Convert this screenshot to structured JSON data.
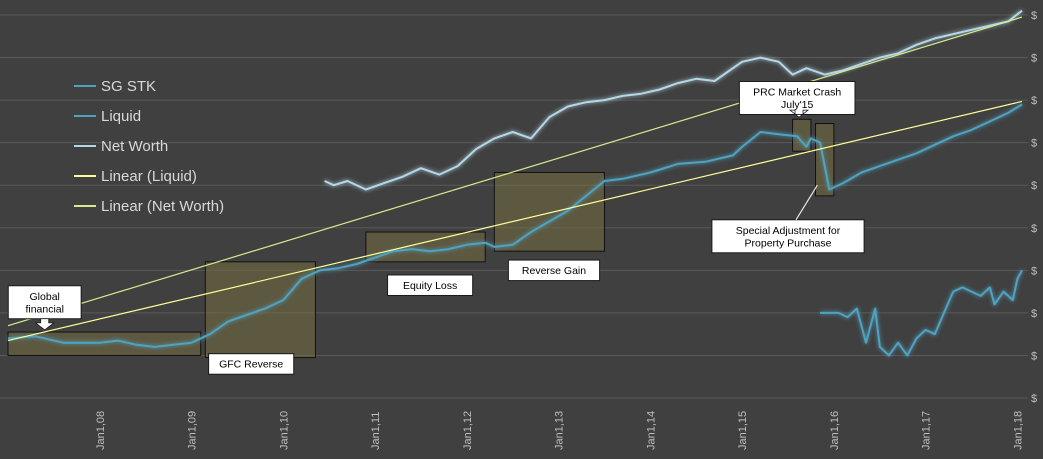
{
  "chart_data": {
    "type": "line",
    "title": "",
    "xlabel": "",
    "ylabel": "",
    "x_range": [
      2007.0,
      2018.05
    ],
    "y_range": [
      0,
      9
    ],
    "y_tick_label": "$",
    "x_tick_labels": [
      "Jan1,08",
      "Jan1,09",
      "Jan1,10",
      "Jan1,11",
      "Jan1,12",
      "Jan1,13",
      "Jan1,14",
      "Jan1,15",
      "Jan1,16",
      "Jan1,17",
      "Jan1,18"
    ],
    "grid": true,
    "legend_position": "top-left",
    "series": [
      {
        "name": "SG STK",
        "color": "#4fa3c0",
        "points": [
          [
            2015.85,
            2.0
          ],
          [
            2016.05,
            2.0
          ],
          [
            2016.15,
            1.9
          ],
          [
            2016.25,
            2.1
          ],
          [
            2016.35,
            1.3
          ],
          [
            2016.45,
            2.1
          ],
          [
            2016.5,
            1.2
          ],
          [
            2016.6,
            1.0
          ],
          [
            2016.7,
            1.3
          ],
          [
            2016.8,
            1.0
          ],
          [
            2016.9,
            1.4
          ],
          [
            2017.0,
            1.6
          ],
          [
            2017.1,
            1.5
          ],
          [
            2017.2,
            2.0
          ],
          [
            2017.3,
            2.5
          ],
          [
            2017.4,
            2.6
          ],
          [
            2017.5,
            2.5
          ],
          [
            2017.6,
            2.4
          ],
          [
            2017.7,
            2.6
          ],
          [
            2017.75,
            2.2
          ],
          [
            2017.85,
            2.5
          ],
          [
            2017.95,
            2.3
          ],
          [
            2018.0,
            2.8
          ],
          [
            2018.05,
            3.0
          ]
        ]
      },
      {
        "name": "Liquid",
        "color": "#4fa3c0",
        "points": [
          [
            2007.0,
            1.4
          ],
          [
            2007.3,
            1.45
          ],
          [
            2007.6,
            1.3
          ],
          [
            2008.0,
            1.3
          ],
          [
            2008.2,
            1.35
          ],
          [
            2008.4,
            1.25
          ],
          [
            2008.6,
            1.2
          ],
          [
            2008.8,
            1.25
          ],
          [
            2009.0,
            1.3
          ],
          [
            2009.2,
            1.5
          ],
          [
            2009.4,
            1.8
          ],
          [
            2009.6,
            1.95
          ],
          [
            2009.8,
            2.1
          ],
          [
            2010.0,
            2.3
          ],
          [
            2010.2,
            2.8
          ],
          [
            2010.4,
            3.0
          ],
          [
            2010.6,
            3.05
          ],
          [
            2010.8,
            3.15
          ],
          [
            2011.0,
            3.3
          ],
          [
            2011.2,
            3.45
          ],
          [
            2011.4,
            3.5
          ],
          [
            2011.6,
            3.45
          ],
          [
            2011.8,
            3.5
          ],
          [
            2012.0,
            3.6
          ],
          [
            2012.2,
            3.65
          ],
          [
            2012.3,
            3.55
          ],
          [
            2012.5,
            3.6
          ],
          [
            2012.7,
            3.9
          ],
          [
            2012.9,
            4.15
          ],
          [
            2013.1,
            4.4
          ],
          [
            2013.3,
            4.75
          ],
          [
            2013.5,
            5.1
          ],
          [
            2013.7,
            5.15
          ],
          [
            2014.0,
            5.3
          ],
          [
            2014.3,
            5.5
          ],
          [
            2014.6,
            5.55
          ],
          [
            2014.9,
            5.7
          ],
          [
            2015.0,
            5.9
          ],
          [
            2015.2,
            6.25
          ],
          [
            2015.4,
            6.2
          ],
          [
            2015.6,
            6.15
          ],
          [
            2015.7,
            5.9
          ],
          [
            2015.75,
            6.1
          ],
          [
            2015.85,
            6.0
          ],
          [
            2015.95,
            4.9
          ],
          [
            2016.1,
            5.05
          ],
          [
            2016.3,
            5.3
          ],
          [
            2016.5,
            5.45
          ],
          [
            2016.7,
            5.6
          ],
          [
            2016.9,
            5.75
          ],
          [
            2017.1,
            5.95
          ],
          [
            2017.3,
            6.15
          ],
          [
            2017.5,
            6.3
          ],
          [
            2017.7,
            6.5
          ],
          [
            2017.9,
            6.7
          ],
          [
            2018.05,
            6.9
          ]
        ]
      },
      {
        "name": "Net Worth",
        "color": "#b4d7e6",
        "points": [
          [
            2010.45,
            5.1
          ],
          [
            2010.55,
            5.0
          ],
          [
            2010.7,
            5.1
          ],
          [
            2010.9,
            4.9
          ],
          [
            2011.1,
            5.05
          ],
          [
            2011.3,
            5.2
          ],
          [
            2011.5,
            5.4
          ],
          [
            2011.7,
            5.25
          ],
          [
            2011.9,
            5.45
          ],
          [
            2012.1,
            5.85
          ],
          [
            2012.3,
            6.1
          ],
          [
            2012.5,
            6.25
          ],
          [
            2012.7,
            6.1
          ],
          [
            2012.9,
            6.6
          ],
          [
            2013.1,
            6.85
          ],
          [
            2013.3,
            6.95
          ],
          [
            2013.5,
            7.0
          ],
          [
            2013.7,
            7.1
          ],
          [
            2013.9,
            7.15
          ],
          [
            2014.1,
            7.25
          ],
          [
            2014.3,
            7.4
          ],
          [
            2014.5,
            7.5
          ],
          [
            2014.7,
            7.45
          ],
          [
            2014.9,
            7.75
          ],
          [
            2015.0,
            7.9
          ],
          [
            2015.2,
            8.0
          ],
          [
            2015.4,
            7.9
          ],
          [
            2015.55,
            7.6
          ],
          [
            2015.7,
            7.75
          ],
          [
            2015.9,
            7.6
          ],
          [
            2016.1,
            7.7
          ],
          [
            2016.3,
            7.85
          ],
          [
            2016.5,
            8.0
          ],
          [
            2016.7,
            8.1
          ],
          [
            2016.9,
            8.3
          ],
          [
            2017.1,
            8.45
          ],
          [
            2017.3,
            8.55
          ],
          [
            2017.5,
            8.65
          ],
          [
            2017.7,
            8.75
          ],
          [
            2017.9,
            8.85
          ],
          [
            2018.05,
            9.1
          ]
        ]
      },
      {
        "name": "Linear (Liquid)",
        "color": "#ffff99",
        "points": [
          [
            2007.0,
            1.35
          ],
          [
            2018.05,
            6.97
          ]
        ]
      },
      {
        "name": "Linear (Net Worth)",
        "color": "#d6ec8c",
        "points": [
          [
            2007.0,
            1.7
          ],
          [
            2018.05,
            8.95
          ]
        ]
      }
    ],
    "highlight_boxes": [
      {
        "x0": 2007.0,
        "x1": 2009.1,
        "y0": 1.0,
        "y1": 1.55
      },
      {
        "x0": 2009.15,
        "x1": 2010.35,
        "y0": 0.95,
        "y1": 3.2
      },
      {
        "x0": 2010.9,
        "x1": 2012.2,
        "y0": 3.2,
        "y1": 3.9
      },
      {
        "x0": 2012.3,
        "x1": 2013.5,
        "y0": 3.45,
        "y1": 5.3
      },
      {
        "x0": 2015.55,
        "x1": 2015.75,
        "y0": 5.8,
        "y1": 6.55
      },
      {
        "x0": 2015.8,
        "x1": 2016.0,
        "y0": 4.75,
        "y1": 6.45
      }
    ],
    "annotations": [
      {
        "lines": [
          "Global",
          "financial"
        ],
        "x": 2007.4,
        "y": 2.25,
        "arrow_to": [
          2007.4,
          1.6
        ]
      },
      {
        "lines": [
          "GFC Reverse"
        ],
        "x": 2009.65,
        "y": 0.8
      },
      {
        "lines": [
          "Equity Loss"
        ],
        "x": 2011.6,
        "y": 2.65
      },
      {
        "lines": [
          "Reverse Gain"
        ],
        "x": 2012.95,
        "y": 3.0
      },
      {
        "lines": [
          "PRC Market Crash",
          "July'15"
        ],
        "x": 2015.6,
        "y": 7.05,
        "arrow_to": [
          2015.62,
          6.6
        ]
      },
      {
        "lines": [
          "Special Adjustment for",
          "Property Purchase"
        ],
        "x": 2015.5,
        "y": 3.8,
        "pointer_to": [
          2015.82,
          5.0
        ]
      }
    ]
  }
}
